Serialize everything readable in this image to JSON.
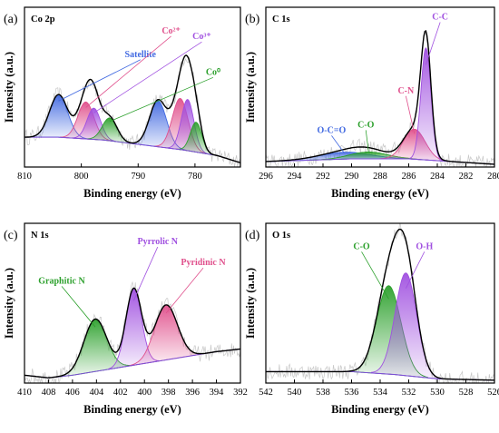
{
  "chart_data": [
    {
      "type": "line",
      "panel_label": "(a)",
      "title": "Co 2p",
      "xlabel": "Binding energy (eV)",
      "ylabel": "Intensity (a.u.)",
      "xlim": [
        810,
        772
      ],
      "xticks": [
        810,
        800,
        790,
        780
      ],
      "baseline": [
        [
          810,
          0.42
        ],
        [
          804,
          0.42
        ],
        [
          796,
          0.38
        ],
        [
          788,
          0.3
        ],
        [
          782,
          0.24
        ],
        [
          776,
          0.16
        ],
        [
          772,
          0.06
        ]
      ],
      "peaks": [
        {
          "name": "Satellite",
          "center": 804.0,
          "height": 0.6,
          "width": 1.6,
          "color": "#4169e1"
        },
        {
          "name": "",
          "center": 799.2,
          "height": 0.52,
          "width": 1.4,
          "color": "#e0508c"
        },
        {
          "name": "",
          "center": 797.8,
          "height": 0.44,
          "width": 1.2,
          "color": "#a050e0"
        },
        {
          "name": "",
          "center": 795.0,
          "height": 0.32,
          "width": 1.3,
          "color": "#2ca02c"
        },
        {
          "name": "",
          "center": 786.5,
          "height": 0.65,
          "width": 1.5,
          "color": "#4169e1"
        },
        {
          "name": "Co2+",
          "center": 782.6,
          "height": 0.72,
          "width": 1.4,
          "color": "#e0508c"
        },
        {
          "name": "Co3+",
          "center": 781.3,
          "height": 0.72,
          "width": 1.1,
          "color": "#a050e0"
        },
        {
          "name": "Co0",
          "center": 779.8,
          "height": 0.42,
          "width": 1.0,
          "color": "#2ca02c"
        }
      ],
      "annotations": [
        {
          "text": "Satellite",
          "color": "#4169e1",
          "x": 789.6,
          "y": 1.55
        },
        {
          "text": "Co²⁺",
          "color": "#e0508c",
          "x": 784.2,
          "y": 1.88
        },
        {
          "text": "Co³⁺",
          "color": "#a050e0",
          "x": 778.8,
          "y": 1.8
        },
        {
          "text": "Co⁰",
          "color": "#2ca02c",
          "x": 776.8,
          "y": 1.3
        }
      ],
      "envelope_color": "#000000",
      "ylim": [
        0,
        2.25
      ]
    },
    {
      "type": "line",
      "panel_label": "(b)",
      "title": "C 1s",
      "xlabel": "Binding energy (eV)",
      "ylabel": "Intensity (a.u.)",
      "xlim": [
        296,
        280
      ],
      "xticks": [
        296,
        294,
        292,
        290,
        288,
        286,
        284,
        282,
        280
      ],
      "baseline": [
        [
          296,
          0.02
        ],
        [
          290,
          0.04
        ],
        [
          286,
          0.04
        ],
        [
          283,
          0.02
        ],
        [
          280,
          0.0
        ]
      ],
      "peaks": [
        {
          "name": "O-C=O",
          "center": 290.5,
          "height": 0.05,
          "width": 1.8,
          "color": "#4169e1"
        },
        {
          "name": "C-O",
          "center": 288.8,
          "height": 0.05,
          "width": 1.3,
          "color": "#2ca02c"
        },
        {
          "name": "C-N",
          "center": 285.6,
          "height": 0.22,
          "width": 0.75,
          "color": "#e0508c"
        },
        {
          "name": "C-C",
          "center": 284.8,
          "height": 0.82,
          "width": 0.35,
          "color": "#a050e0"
        }
      ],
      "annotations": [
        {
          "text": "O-C=O",
          "color": "#4169e1",
          "x": 291.4,
          "y": 0.23
        },
        {
          "text": "C-O",
          "color": "#2ca02c",
          "x": 289.0,
          "y": 0.27
        },
        {
          "text": "C-N",
          "color": "#e0508c",
          "x": 286.2,
          "y": 0.52
        },
        {
          "text": "C-C",
          "color": "#a050e0",
          "x": 283.8,
          "y": 1.06
        }
      ],
      "envelope_color": "#000000",
      "ylim": [
        -0.02,
        1.15
      ]
    },
    {
      "type": "line",
      "panel_label": "(c)",
      "title": "N 1s",
      "xlabel": "Binding energy (eV)",
      "ylabel": "Intensity (a.u.)",
      "xlim": [
        410,
        392
      ],
      "xticks": [
        410,
        408,
        406,
        404,
        402,
        400,
        398,
        396,
        394,
        392
      ],
      "baseline": [
        [
          410,
          0.06
        ],
        [
          408,
          0.04
        ],
        [
          406,
          0.06
        ],
        [
          402,
          0.12
        ],
        [
          398,
          0.18
        ],
        [
          394,
          0.24
        ],
        [
          392,
          0.26
        ]
      ],
      "peaks": [
        {
          "name": "Graphitic N",
          "center": 404.1,
          "height": 0.4,
          "width": 0.95,
          "color": "#2ca02c"
        },
        {
          "name": "Pyrrolic N",
          "center": 400.9,
          "height": 0.58,
          "width": 0.65,
          "color": "#a050e0"
        },
        {
          "name": "Pyridinic N",
          "center": 398.2,
          "height": 0.42,
          "width": 0.95,
          "color": "#e0508c"
        }
      ],
      "annotations": [
        {
          "text": "Graphitic N",
          "color": "#2ca02c",
          "x": 406.9,
          "y": 0.76
        },
        {
          "text": "Pyrrolic N",
          "color": "#a050e0",
          "x": 398.9,
          "y": 1.06
        },
        {
          "text": "Pyridinic N",
          "color": "#e0508c",
          "x": 395.1,
          "y": 0.9
        }
      ],
      "envelope_color": "#000000",
      "ylim": [
        0,
        1.22
      ]
    },
    {
      "type": "line",
      "panel_label": "(d)",
      "title": "O 1s",
      "xlabel": "Binding energy (eV)",
      "ylabel": "Intensity (a.u.)",
      "xlim": [
        542,
        526
      ],
      "xticks": [
        542,
        540,
        538,
        536,
        534,
        532,
        530,
        528,
        526
      ],
      "baseline": [
        [
          542,
          0.08
        ],
        [
          536,
          0.08
        ],
        [
          533,
          0.06
        ],
        [
          530,
          0.03
        ],
        [
          526,
          0.02
        ]
      ],
      "peaks": [
        {
          "name": "C-O",
          "center": 533.4,
          "height": 0.62,
          "width": 0.85,
          "color": "#2ca02c"
        },
        {
          "name": "O-H",
          "center": 532.2,
          "height": 0.72,
          "width": 0.75,
          "color": "#a050e0"
        }
      ],
      "annotations": [
        {
          "text": "C-O",
          "color": "#2ca02c",
          "x": 535.3,
          "y": 0.94
        },
        {
          "text": "O-H",
          "color": "#a050e0",
          "x": 530.9,
          "y": 0.94
        }
      ],
      "envelope_color": "#000000",
      "ylim": [
        0,
        1.12
      ]
    }
  ]
}
